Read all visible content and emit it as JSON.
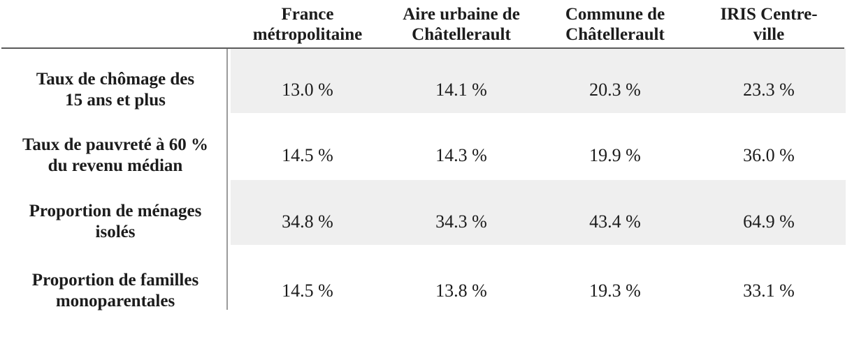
{
  "colors": {
    "band": "#efefef",
    "header-line": "#5a5a5a",
    "divider-line": "#9b9b9b",
    "text": "#1c1c1c"
  },
  "table": {
    "columns": [
      {
        "line1": "France",
        "line2": "métropolitaine"
      },
      {
        "line1": "Aire urbaine de",
        "line2": "Châtellerault"
      },
      {
        "line1": "Commune de",
        "line2": "Châtellerault"
      },
      {
        "line1": "IRIS Centre-",
        "line2": "ville"
      }
    ],
    "rows": [
      {
        "label_line1": "Taux de chômage des",
        "label_line2": "15 ans et plus",
        "values": [
          "13.0 %",
          "14.1 %",
          "20.3 %",
          "23.3 %"
        ]
      },
      {
        "label_line1": "Taux de pauvreté à 60 %",
        "label_line2": "du revenu médian",
        "values": [
          "14.5 %",
          "14.3 %",
          "19.9 %",
          "36.0 %"
        ]
      },
      {
        "label_line1": "Proportion de ménages",
        "label_line2": "isolés",
        "values": [
          "34.8 %",
          "34.3 %",
          "43.4 %",
          "64.9 %"
        ]
      },
      {
        "label_line1": "Proportion de familles",
        "label_line2": "monoparentales",
        "values": [
          "14.5 %",
          "13.8 %",
          "19.3 %",
          "33.1 %"
        ]
      }
    ]
  }
}
